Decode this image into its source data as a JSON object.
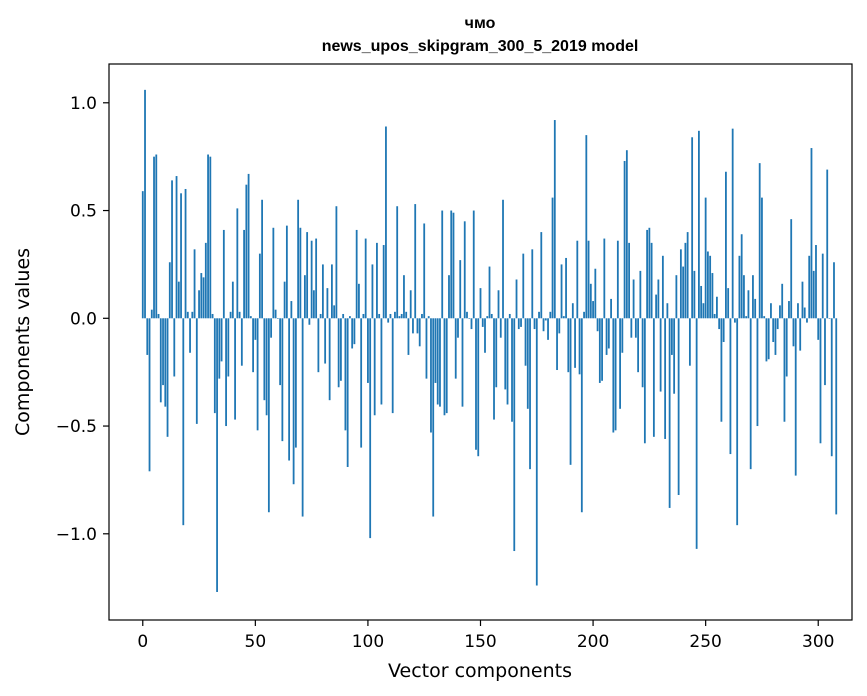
{
  "chart_data": {
    "type": "bar",
    "title_line1": "чмо",
    "title_line2": "news_upos_skipgram_300_5_2019 model",
    "xlabel": "Vector components",
    "ylabel": "Components values",
    "xlim": [
      -15,
      315
    ],
    "ylim": [
      -1.4,
      1.18
    ],
    "xticks": [
      0,
      50,
      100,
      150,
      200,
      250,
      300
    ],
    "xtick_labels": [
      "0",
      "50",
      "100",
      "150",
      "200",
      "250",
      "300"
    ],
    "yticks": [
      -1.0,
      -0.5,
      0.0,
      0.5,
      1.0
    ],
    "ytick_labels": [
      "−1.0",
      "−0.5",
      "0.0",
      "0.5",
      "1.0"
    ],
    "bar_color": "#1f77b4",
    "series": [
      {
        "name": "components",
        "values": [
          0.59,
          1.06,
          -0.17,
          -0.71,
          0.04,
          0.75,
          0.76,
          0.02,
          -0.39,
          -0.31,
          -0.41,
          -0.55,
          0.26,
          0.64,
          -0.27,
          0.66,
          0.17,
          0.58,
          -0.96,
          0.6,
          0.03,
          -0.16,
          0.03,
          0.32,
          -0.49,
          0.13,
          0.21,
          0.19,
          0.35,
          0.76,
          0.75,
          0.02,
          -0.44,
          -1.27,
          -0.28,
          -0.2,
          0.41,
          -0.5,
          -0.27,
          0.03,
          0.17,
          -0.47,
          0.51,
          0.03,
          -0.22,
          0.41,
          0.62,
          0.67,
          0.01,
          -0.25,
          -0.1,
          -0.52,
          0.3,
          0.55,
          -0.38,
          -0.45,
          -0.9,
          -0.09,
          0.42,
          0.04,
          0.0,
          -0.31,
          -0.57,
          0.17,
          0.43,
          -0.66,
          0.08,
          -0.77,
          -0.6,
          0.55,
          0.42,
          -0.92,
          0.2,
          0.4,
          -0.03,
          0.36,
          0.13,
          0.37,
          -0.25,
          0.02,
          0.25,
          -0.21,
          0.14,
          -0.38,
          0.25,
          0.06,
          0.52,
          -0.32,
          -0.29,
          0.02,
          -0.52,
          -0.69,
          0.01,
          -0.14,
          -0.12,
          0.41,
          0.16,
          -0.6,
          0.02,
          0.37,
          -0.3,
          -1.02,
          0.25,
          -0.45,
          0.35,
          0.02,
          -0.4,
          0.34,
          0.89,
          -0.02,
          0.02,
          -0.44,
          0.03,
          0.52,
          0.01,
          0.02,
          0.2,
          0.03,
          -0.17,
          0.13,
          -0.07,
          0.53,
          -0.07,
          -0.13,
          0.02,
          0.44,
          -0.28,
          0.01,
          -0.53,
          -0.92,
          -0.3,
          -0.4,
          -0.41,
          0.5,
          -0.45,
          -0.44,
          0.2,
          0.5,
          0.49,
          -0.28,
          -0.09,
          0.27,
          -0.41,
          0.45,
          0.03,
          0.0,
          -0.05,
          0.5,
          -0.61,
          -0.64,
          0.14,
          -0.04,
          -0.16,
          0.01,
          0.24,
          0.02,
          -0.47,
          -0.32,
          0.13,
          -0.09,
          0.55,
          -0.33,
          -0.4,
          0.02,
          -0.48,
          -1.08,
          0.18,
          -0.05,
          -0.04,
          0.3,
          -0.22,
          -0.42,
          -0.7,
          0.32,
          -0.05,
          -1.24,
          0.03,
          0.4,
          -0.06,
          -0.01,
          -0.1,
          0.03,
          0.56,
          0.92,
          -0.24,
          -0.07,
          0.25,
          0.01,
          0.28,
          -0.25,
          -0.68,
          0.07,
          -0.23,
          0.36,
          -0.26,
          -0.9,
          0.03,
          0.85,
          0.36,
          0.16,
          0.08,
          0.23,
          -0.06,
          -0.3,
          -0.29,
          0.37,
          -0.17,
          -0.14,
          0.09,
          -0.53,
          -0.52,
          0.36,
          -0.42,
          -0.16,
          0.73,
          0.78,
          0.35,
          -0.09,
          0.18,
          -0.09,
          -0.25,
          0.22,
          -0.32,
          -0.58,
          0.41,
          0.42,
          0.35,
          -0.55,
          0.11,
          0.18,
          -0.34,
          0.29,
          -0.56,
          0.07,
          -0.88,
          -0.17,
          -0.35,
          0.2,
          -0.82,
          0.32,
          0.24,
          0.35,
          0.4,
          -0.22,
          0.84,
          0.22,
          -1.07,
          0.87,
          0.15,
          0.07,
          0.56,
          0.31,
          0.29,
          0.21,
          0.02,
          0.1,
          -0.05,
          -0.48,
          -0.11,
          0.68,
          0.14,
          -0.63,
          0.88,
          -0.02,
          -0.96,
          0.29,
          0.39,
          0.2,
          0.01,
          0.13,
          -0.7,
          0.2,
          0.09,
          -0.5,
          0.72,
          0.56,
          0.01,
          -0.2,
          -0.19,
          0.07,
          -0.11,
          -0.17,
          -0.05,
          0.06,
          0.16,
          -0.48,
          -0.27,
          0.08,
          0.46,
          -0.13,
          -0.73,
          0.07,
          -0.15,
          0.17,
          0.05,
          -0.02,
          0.29,
          0.79,
          0.22,
          0.34,
          -0.1,
          -0.58,
          0.3,
          -0.31,
          0.69,
          0.0,
          -0.64,
          0.26,
          -0.91
        ]
      }
    ]
  }
}
